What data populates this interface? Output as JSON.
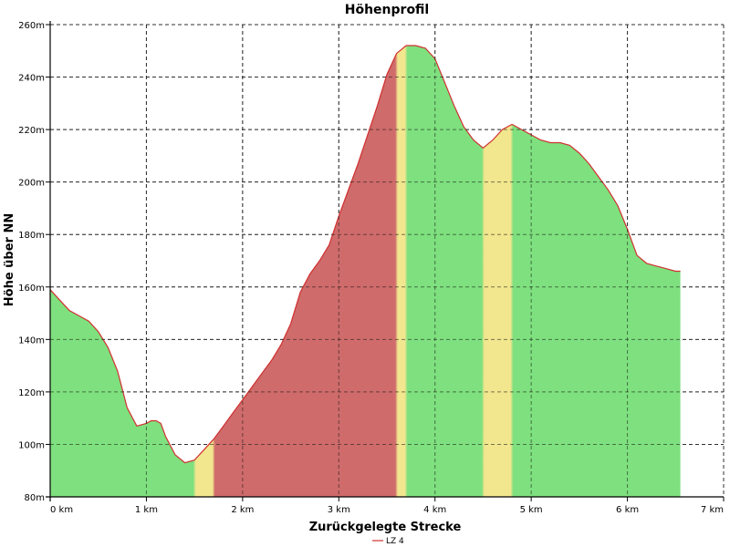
{
  "chart_data": {
    "type": "area",
    "title": "Höhenprofil",
    "xlabel": "Zurückgelegte Strecke",
    "ylabel": "Höhe über NN",
    "xlim": [
      0,
      7
    ],
    "ylim": [
      80,
      260
    ],
    "x_unit": "km",
    "y_unit": "m",
    "grid": true,
    "legend_placement": "bottom-center",
    "x_ticks": [
      "0 km",
      "1 km",
      "2 km",
      "3 km",
      "4 km",
      "5 km",
      "6 km",
      "7 km"
    ],
    "y_ticks": [
      "80m",
      "100m",
      "120m",
      "140m",
      "160m",
      "180m",
      "200m",
      "220m",
      "240m",
      "260m"
    ],
    "series": [
      {
        "name": "LZ 4",
        "color": "#d03030",
        "x": [
          0,
          0.1,
          0.2,
          0.3,
          0.4,
          0.5,
          0.6,
          0.7,
          0.8,
          0.9,
          1.0,
          1.05,
          1.1,
          1.15,
          1.2,
          1.3,
          1.4,
          1.5,
          1.6,
          1.7,
          1.8,
          1.9,
          2.0,
          2.1,
          2.2,
          2.3,
          2.4,
          2.5,
          2.6,
          2.7,
          2.8,
          2.9,
          3.0,
          3.1,
          3.2,
          3.3,
          3.4,
          3.5,
          3.6,
          3.7,
          3.8,
          3.9,
          4.0,
          4.1,
          4.2,
          4.3,
          4.4,
          4.5,
          4.6,
          4.7,
          4.8,
          4.9,
          5.0,
          5.1,
          5.2,
          5.3,
          5.4,
          5.5,
          5.6,
          5.7,
          5.8,
          5.9,
          6.0,
          6.1,
          6.2,
          6.3,
          6.4,
          6.5,
          6.55
        ],
        "values": [
          159,
          155,
          151,
          149,
          147,
          143,
          137,
          128,
          114,
          107,
          108,
          109,
          109,
          108,
          103,
          96,
          93,
          94,
          98,
          102,
          107,
          112,
          117,
          122,
          127,
          132,
          138,
          146,
          158,
          165,
          170,
          176,
          187,
          197,
          207,
          218,
          229,
          241,
          249,
          252,
          252,
          251,
          247,
          238,
          229,
          221,
          216,
          213,
          216,
          220,
          222,
          220,
          218,
          216,
          215,
          215,
          214,
          211,
          207,
          202,
          197,
          191,
          182,
          172,
          169,
          168,
          167,
          166,
          166
        ]
      }
    ],
    "gradient_legend": {
      "green": "#7ee07e",
      "yellow": "#f2e68e",
      "red": "#cf6b6b"
    }
  }
}
